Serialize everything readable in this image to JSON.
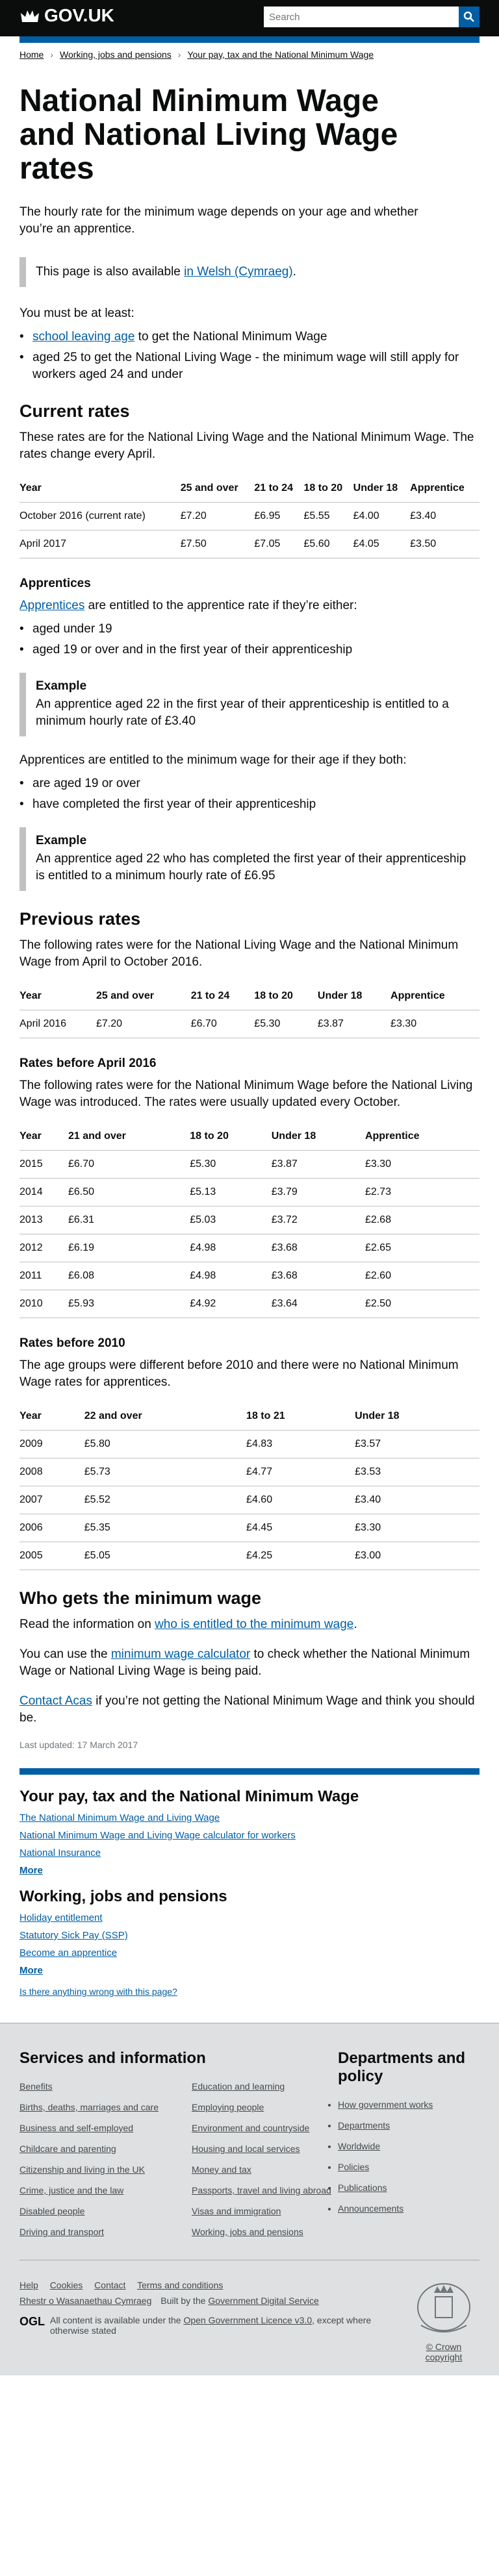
{
  "header": {
    "logo": "GOV.UK",
    "search_placeholder": "Search"
  },
  "breadcrumb": [
    "Home",
    "Working, jobs and pensions",
    "Your pay, tax and the National Minimum Wage"
  ],
  "title": "National Minimum Wage and National Living Wage rates",
  "lead": "The hourly rate for the minimum wage depends on your age and whether you’re an apprentice.",
  "welsh": {
    "prefix": "This page is also available ",
    "link": "in Welsh (Cymraeg)",
    "suffix": "."
  },
  "must_be": "You must be at least:",
  "must_be_items": {
    "i1_link": "school leaving age",
    "i1_text": " to get the National Minimum Wage",
    "i2_text": "aged 25 to get the National Living Wage - the minimum wage will still apply for workers aged 24 and under"
  },
  "current": {
    "heading": "Current rates",
    "intro": "These rates are for the National Living Wage and the National Minimum Wage. The rates change every April.",
    "headers": [
      "Year",
      "25 and over",
      "21 to 24",
      "18 to 20",
      "Under 18",
      "Apprentice"
    ],
    "rows": [
      [
        "October 2016 (current rate)",
        "£7.20",
        "£6.95",
        "£5.55",
        "£4.00",
        "£3.40"
      ],
      [
        "April 2017",
        "£7.50",
        "£7.05",
        "£5.60",
        "£4.05",
        "£3.50"
      ]
    ]
  },
  "apprentices": {
    "heading": "Apprentices",
    "p1_link": "Apprentices",
    "p1_text": " are entitled to the apprentice rate if they’re either:",
    "list1": [
      "aged under 19",
      "aged 19 or over and in the first year of their apprenticeship"
    ],
    "ex1_title": "Example",
    "ex1_text": "An apprentice aged 22 in the first year of their apprenticeship is entitled to a minimum hourly rate of £3.40",
    "p2": "Apprentices are entitled to the minimum wage for their age if they both:",
    "list2": [
      "are aged 19 or over",
      "have completed the first year of their apprenticeship"
    ],
    "ex2_title": "Example",
    "ex2_text": "An apprentice aged 22 who has completed the first year of their apprenticeship is entitled to a minimum hourly rate of £6.95"
  },
  "previous": {
    "heading": "Previous rates",
    "intro": "The following rates were for the National Living Wage and the National Minimum Wage from April to October 2016.",
    "headers": [
      "Year",
      "25 and over",
      "21 to 24",
      "18 to 20",
      "Under 18",
      "Apprentice"
    ],
    "rows": [
      [
        "April 2016",
        "£7.20",
        "£6.70",
        "£5.30",
        "£3.87",
        "£3.30"
      ]
    ]
  },
  "before2016": {
    "heading": "Rates before April 2016",
    "intro": "The following rates were for the National Minimum Wage before the National Living Wage was introduced. The rates were usually updated every October.",
    "headers": [
      "Year",
      "21 and over",
      "18 to 20",
      "Under 18",
      "Apprentice"
    ],
    "rows": [
      [
        "2015",
        "£6.70",
        "£5.30",
        "£3.87",
        "£3.30"
      ],
      [
        "2014",
        "£6.50",
        "£5.13",
        "£3.79",
        "£2.73"
      ],
      [
        "2013",
        "£6.31",
        "£5.03",
        "£3.72",
        "£2.68"
      ],
      [
        "2012",
        "£6.19",
        "£4.98",
        "£3.68",
        "£2.65"
      ],
      [
        "2011",
        "£6.08",
        "£4.98",
        "£3.68",
        "£2.60"
      ],
      [
        "2010",
        "£5.93",
        "£4.92",
        "£3.64",
        "£2.50"
      ]
    ]
  },
  "before2010": {
    "heading": "Rates before 2010",
    "intro": "The age groups were different before 2010 and there were no National Minimum Wage rates for apprentices.",
    "headers": [
      "Year",
      "22 and over",
      "18 to 21",
      "Under 18"
    ],
    "rows": [
      [
        "2009",
        "£5.80",
        "£4.83",
        "£3.57"
      ],
      [
        "2008",
        "£5.73",
        "£4.77",
        "£3.53"
      ],
      [
        "2007",
        "£5.52",
        "£4.60",
        "£3.40"
      ],
      [
        "2006",
        "£5.35",
        "£4.45",
        "£3.30"
      ],
      [
        "2005",
        "£5.05",
        "£4.25",
        "£3.00"
      ]
    ]
  },
  "who": {
    "heading": "Who gets the minimum wage",
    "p1_prefix": "Read the information on ",
    "p1_link": "who is entitled to the minimum wage",
    "p1_suffix": ".",
    "p2_prefix": "You can use the ",
    "p2_link": "minimum wage calculator",
    "p2_suffix": " to check whether the National Minimum Wage or National Living Wage is being paid.",
    "p3_link": "Contact Acas",
    "p3_suffix": " if you’re not getting the National Minimum Wage and think you should be."
  },
  "last_updated": "Last updated: 17 March 2017",
  "related1": {
    "heading": "Your pay, tax and the National Minimum Wage",
    "links": [
      "The National Minimum Wage and Living Wage",
      "National Minimum Wage and Living Wage calculator for workers",
      "National Insurance"
    ],
    "more": "More"
  },
  "related2": {
    "heading": "Working, jobs and pensions",
    "links": [
      "Holiday entitlement",
      "Statutory Sick Pay (SSP)",
      "Become an apprentice"
    ],
    "more": "More"
  },
  "report": "Is there anything wrong with this page?",
  "footer": {
    "services_heading": "Services and information",
    "services_col1": [
      "Benefits",
      "Births, deaths, marriages and care",
      "Business and self-employed",
      "Childcare and parenting",
      "Citizenship and living in the UK",
      "Crime, justice and the law",
      "Disabled people",
      "Driving and transport"
    ],
    "services_col2": [
      "Education and learning",
      "Employing people",
      "Environment and countryside",
      "Housing and local services",
      "Money and tax",
      "Passports, travel and living abroad",
      "Visas and immigration",
      "Working, jobs and pensions"
    ],
    "depts_heading": "Departments and policy",
    "depts": [
      "How government works",
      "Departments",
      "Worldwide",
      "Policies",
      "Publications",
      "Announcements"
    ],
    "meta_links": [
      "Help",
      "Cookies",
      "Contact",
      "Terms and conditions"
    ],
    "welsh_link": "Rhestr o Wasanaethau Cymraeg",
    "built_by_prefix": "Built by the ",
    "built_by_link": "Government Digital Service",
    "ogl_badge": "OGL",
    "ogl_prefix": "All content is available under the ",
    "ogl_link": "Open Government Licence v3.0",
    "ogl_suffix": ", except where otherwise stated",
    "copyright": "© Crown copyright"
  }
}
